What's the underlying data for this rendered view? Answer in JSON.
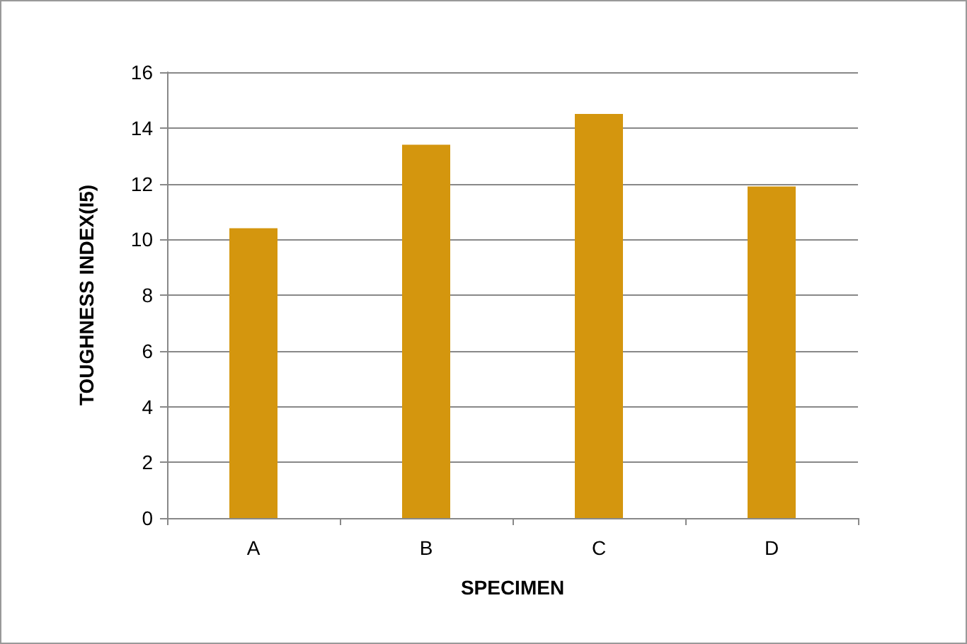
{
  "chart_data": {
    "type": "bar",
    "xlabel": "SPECIMEN",
    "ylabel": "TOUGHNESS INDEX(I5)",
    "categories": [
      "A",
      "B",
      "C",
      "D"
    ],
    "values": [
      10.4,
      13.4,
      14.5,
      11.9
    ],
    "color": "#d4960e",
    "ylim": [
      0,
      16
    ],
    "yticks": [
      0,
      2,
      4,
      6,
      8,
      10,
      12,
      14,
      16
    ],
    "grid": "y"
  }
}
